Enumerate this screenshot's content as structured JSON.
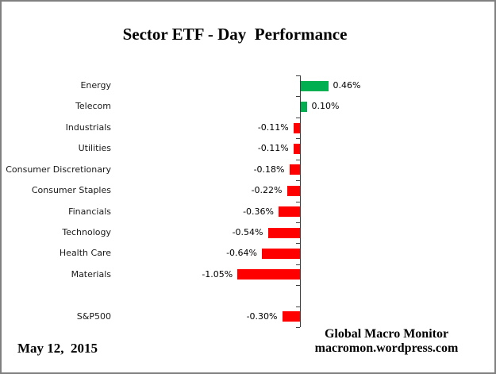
{
  "title": "Sector ETF - Day  Performance",
  "footer": {
    "date": "May 12,  2015",
    "credit_line1": "Global Macro Monitor",
    "credit_line2": "macromon.wordpress.com"
  },
  "frame": {
    "background": "#ffffff",
    "border_color": "#808080"
  },
  "chart_data": {
    "type": "bar",
    "orientation": "horizontal",
    "title": "Sector ETF - Day  Performance",
    "categories": [
      "Energy",
      "Telecom",
      "Industrials",
      "Utilities",
      "Consumer Discretionary",
      "Consumer Staples",
      "Financials",
      "Technology",
      "Health Care",
      "Materials",
      "",
      "S&P500"
    ],
    "values": [
      0.46,
      0.1,
      -0.11,
      -0.11,
      -0.18,
      -0.22,
      -0.36,
      -0.54,
      -0.64,
      -1.05,
      null,
      -0.3
    ],
    "value_labels": [
      "0.46%",
      "0.10%",
      "-0.11%",
      "-0.11%",
      "-0.18%",
      "-0.22%",
      "-0.36%",
      "-0.54%",
      "-0.64%",
      "-1.05%",
      "",
      "-0.30%"
    ],
    "unit": "%",
    "xlim": [
      -1.2,
      0.6
    ],
    "grid": false,
    "legend": false,
    "positive_color": "#00B050",
    "negative_color": "#FF0000",
    "axis_color": "#404040"
  }
}
